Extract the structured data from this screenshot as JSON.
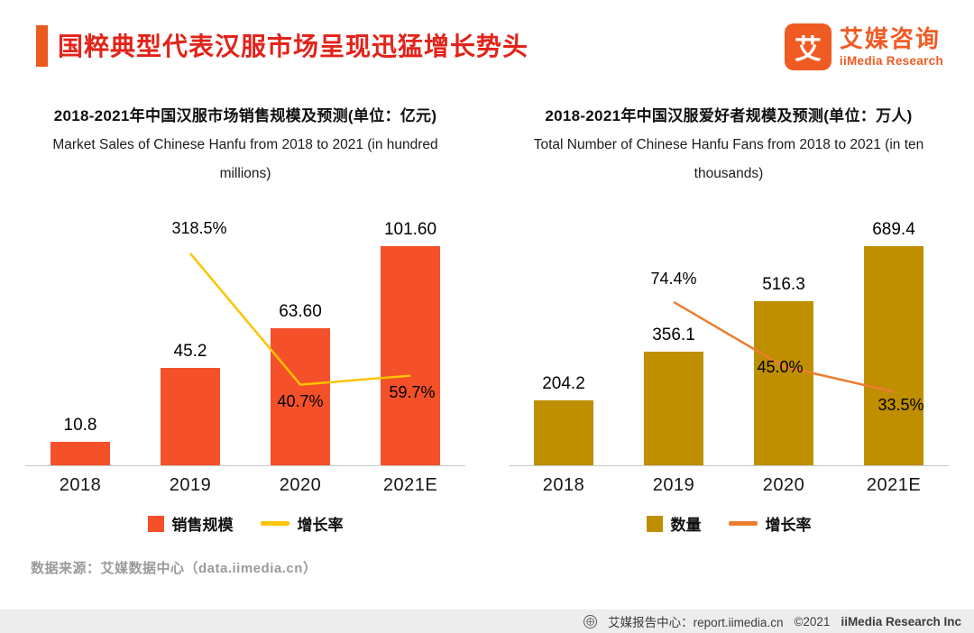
{
  "header": {
    "title": "国粹典型代表汉服市场呈现迅猛增长势头",
    "logo": {
      "icon_char": "艾",
      "name_cn": "艾媒咨询",
      "name_en": "iiMedia Research"
    }
  },
  "colors": {
    "title_red": "#e2231a",
    "accent_orange": "#eb5a1e",
    "logo_orange": "#f05a23"
  },
  "chart_data": [
    {
      "type": "bar",
      "title": "2018-2021年中国汉服市场销售规模及预测(单位：亿元)",
      "subtitle_en": "Market Sales of Chinese Hanfu from 2018 to 2021 (in hundred millions)",
      "categories": [
        "2018",
        "2019",
        "2020",
        "2021E"
      ],
      "series": [
        {
          "name": "销售规模",
          "type": "bar",
          "color": "#f4502a",
          "values": [
            10.8,
            45.2,
            63.6,
            101.6
          ],
          "labels": [
            "10.8",
            "45.2",
            "63.60",
            "101.60"
          ]
        },
        {
          "name": "增长率",
          "type": "line",
          "color": "#fdc300",
          "values": [
            null,
            318.5,
            40.7,
            59.7
          ],
          "labels": [
            null,
            "318.5%",
            "40.7%",
            "59.7%"
          ]
        }
      ],
      "bar_axis_max": 115,
      "line_axis": {
        "min": -130,
        "max": 395
      },
      "line_label_offsets": [
        null,
        [
          10,
          -38
        ],
        [
          0,
          8
        ],
        [
          2,
          8
        ]
      ],
      "legend": [
        {
          "label": "销售规模",
          "swatch": "bar",
          "color": "#f4502a"
        },
        {
          "label": "增长率",
          "swatch": "line",
          "color": "#fdc300"
        }
      ],
      "grid": false,
      "legend_position": "bottom"
    },
    {
      "type": "bar",
      "title": "2018-2021年中国汉服爱好者规模及预测(单位：万人)",
      "subtitle_en": "Total Number of Chinese Hanfu Fans from 2018 to 2021 (in ten thousands)",
      "categories": [
        "2018",
        "2019",
        "2020",
        "2021E"
      ],
      "series": [
        {
          "name": "数量",
          "type": "bar",
          "color": "#bf8f00",
          "values": [
            204.2,
            356.1,
            516.3,
            689.4
          ],
          "labels": [
            "204.2",
            "356.1",
            "516.3",
            "689.4"
          ]
        },
        {
          "name": "增长率",
          "type": "line",
          "color": "#ed7d31",
          "values": [
            null,
            74.4,
            45.0,
            33.5
          ],
          "labels": [
            null,
            "74.4%",
            "45.0%",
            "33.5%"
          ]
        }
      ],
      "bar_axis_max": 780,
      "line_axis": {
        "min": 0,
        "max": 113
      },
      "line_label_offsets": [
        null,
        [
          0,
          -36
        ],
        [
          -4,
          -9
        ],
        [
          8,
          5
        ]
      ],
      "legend": [
        {
          "label": "数量",
          "swatch": "bar",
          "color": "#bf8f00"
        },
        {
          "label": "增长率",
          "swatch": "line",
          "color": "#ed7d31"
        }
      ],
      "grid": false,
      "legend_position": "bottom"
    }
  ],
  "source_note": "数据来源：艾媒数据中心（data.iimedia.cn）",
  "footer": {
    "report_center": "艾媒报告中心：report.iimedia.cn",
    "copyright": "©2021",
    "company": "iiMedia Research Inc"
  }
}
